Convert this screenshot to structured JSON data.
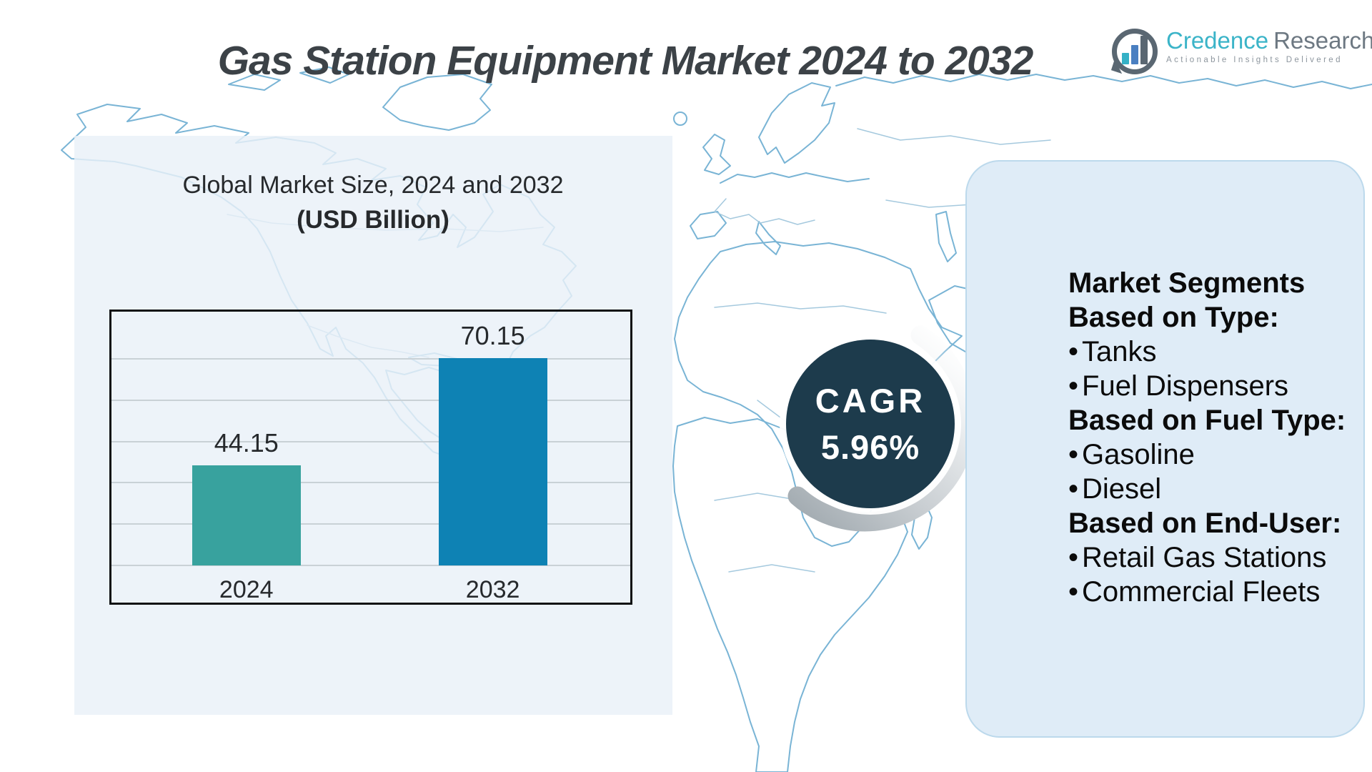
{
  "header": {
    "title": "Gas Station Equipment Market 2024 to 2032",
    "logo": {
      "name_primary": "Credence",
      "name_secondary": "Research",
      "tagline": "Actionable Insights Delivered"
    }
  },
  "chart": {
    "title": "Global Market Size, 2024 and 2032",
    "subtitle": "(USD Billion)"
  },
  "chart_data": {
    "type": "bar",
    "title": "Global Market Size, 2024 and 2032",
    "subtitle": "(USD Billion)",
    "unit": "USD Billion",
    "categories": [
      "2024",
      "2032"
    ],
    "values": [
      44.15,
      70.15
    ],
    "value_labels": [
      "44.15",
      "70.15"
    ],
    "ylim": [
      20,
      80
    ],
    "ytick": 10,
    "grid": true,
    "legend": false,
    "bar_colors": [
      "#38a29e",
      "#0e82b4"
    ]
  },
  "cagr": {
    "label": "CAGR",
    "value": "5.96%"
  },
  "segments_panel": {
    "title": "Market Segments",
    "bullet": "•",
    "groups": [
      {
        "heading": "Based on Type:",
        "items": [
          "Tanks",
          "Fuel Dispensers"
        ]
      },
      {
        "heading": "Based on Fuel Type:",
        "items": [
          "Gasoline",
          "Diesel"
        ]
      },
      {
        "heading": "Based on End-User:",
        "items": [
          "Retail Gas Stations",
          "Commercial Fleets"
        ]
      }
    ]
  },
  "colors": {
    "bar_2024": "#38a29e",
    "bar_2032": "#0e82b4",
    "cagr_circle": "#1d3b4c",
    "panel_fill": "#dfecf7",
    "panel_border": "#bcd9ec",
    "map_line": "#79b4d5",
    "title_text": "#3c4247",
    "brand_teal": "#3bb4c8",
    "brand_gray": "#6d7882"
  }
}
